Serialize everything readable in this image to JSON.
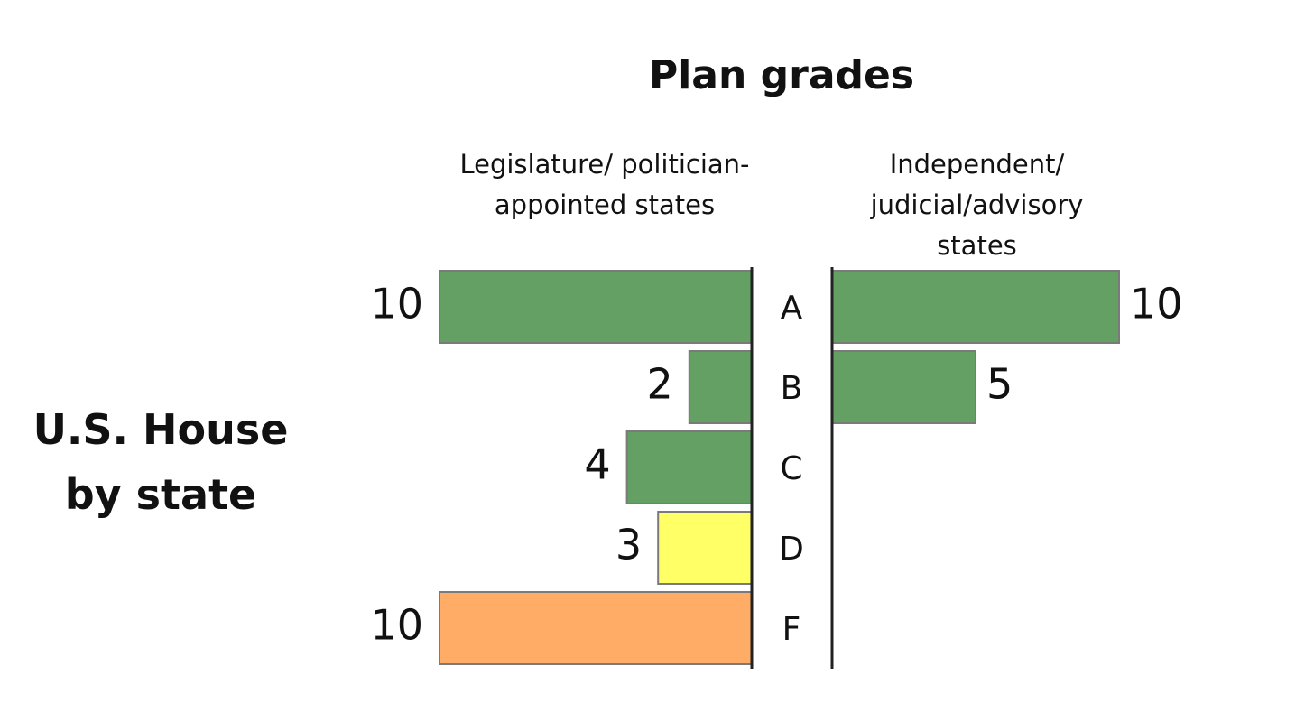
{
  "chart_data": {
    "type": "bar",
    "title": "Plan grades",
    "row_label": "U.S. House by state",
    "categories": [
      "A",
      "B",
      "C",
      "D",
      "F"
    ],
    "series": [
      {
        "name": "Legislature/ politician-appointed states",
        "values": [
          10,
          2,
          4,
          3,
          10
        ],
        "colors": [
          "#64a064",
          "#64a064",
          "#64a064",
          "#ffff66",
          "#ffac66"
        ]
      },
      {
        "name": "Independent/ judicial/advisory states",
        "values": [
          10,
          5,
          null,
          null,
          null
        ],
        "colors": [
          "#64a064",
          "#64a064",
          null,
          null,
          null
        ]
      }
    ],
    "xlim": [
      0,
      10
    ]
  }
}
